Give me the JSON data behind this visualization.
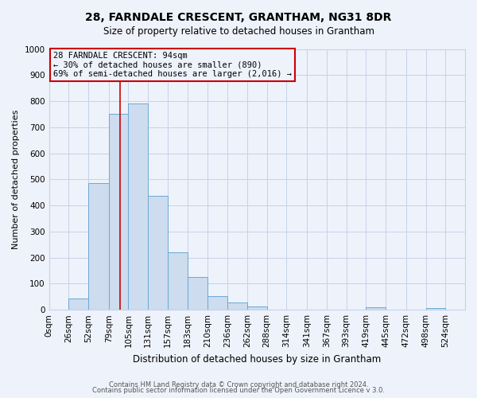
{
  "title": "28, FARNDALE CRESCENT, GRANTHAM, NG31 8DR",
  "subtitle": "Size of property relative to detached houses in Grantham",
  "xlabel": "Distribution of detached houses by size in Grantham",
  "ylabel": "Number of detached properties",
  "bar_labels": [
    "0sqm",
    "26sqm",
    "52sqm",
    "79sqm",
    "105sqm",
    "131sqm",
    "157sqm",
    "183sqm",
    "210sqm",
    "236sqm",
    "262sqm",
    "288sqm",
    "314sqm",
    "341sqm",
    "367sqm",
    "393sqm",
    "419sqm",
    "445sqm",
    "472sqm",
    "498sqm",
    "524sqm"
  ],
  "bin_edges": [
    0,
    26,
    52,
    79,
    105,
    131,
    157,
    183,
    210,
    236,
    262,
    288,
    314,
    341,
    367,
    393,
    419,
    445,
    472,
    498,
    524,
    550
  ],
  "bar_values": [
    0,
    43,
    485,
    750,
    790,
    437,
    220,
    127,
    52,
    28,
    13,
    0,
    0,
    0,
    0,
    0,
    10,
    0,
    0,
    7,
    0
  ],
  "bar_color": "#cddcee",
  "bar_edge_color": "#6aaad4",
  "ylim": [
    0,
    1000
  ],
  "yticks": [
    0,
    100,
    200,
    300,
    400,
    500,
    600,
    700,
    800,
    900,
    1000
  ],
  "property_line_x": 94,
  "annotation_line1": "28 FARNDALE CRESCENT: 94sqm",
  "annotation_line2": "← 30% of detached houses are smaller (890)",
  "annotation_line3": "69% of semi-detached houses are larger (2,016) →",
  "footer_line1": "Contains HM Land Registry data © Crown copyright and database right 2024.",
  "footer_line2": "Contains public sector information licensed under the Open Government Licence v 3.0.",
  "bg_color": "#eef2fb",
  "grid_color": "#c5d3e8",
  "annotation_box_color": "#cc0000",
  "title_fontsize": 10,
  "subtitle_fontsize": 8.5,
  "xlabel_fontsize": 8.5,
  "ylabel_fontsize": 8,
  "tick_fontsize": 7.5,
  "annot_fontsize": 7.5,
  "footer_fontsize": 6
}
